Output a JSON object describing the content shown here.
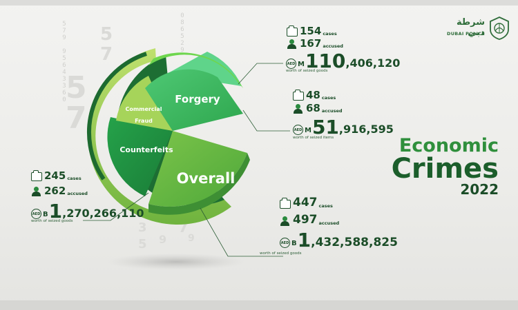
{
  "logo": {
    "arabic": "شرطة دبي",
    "english": "DUBAI POLICE",
    "emblem": "dubai-police-emblem"
  },
  "title": {
    "line1": "Economic",
    "line2": "Crimes",
    "year": "2022"
  },
  "pie": {
    "slices": [
      "Forgery",
      "Commercial Fraud",
      "Counterfeits",
      "Overall"
    ],
    "colors": {
      "dark": "#1b6b2f",
      "mid": "#2ea84a",
      "light": "#8ccc4a",
      "pale": "#b8de72"
    }
  },
  "stats": {
    "commercial_fraud": {
      "cases": "154",
      "cases_unit": "cases",
      "accused": "167",
      "accused_unit": "accused",
      "amount_prefix": "M",
      "amount_big": "110",
      "amount_rest": ",406,120",
      "amount_label": "worth of seized goods"
    },
    "forgery": {
      "cases": "48",
      "cases_unit": "cases",
      "accused": "68",
      "accused_unit": "accused",
      "amount_prefix": "M",
      "amount_big": "51",
      "amount_rest": ",916,595",
      "amount_label": "worth of seized items"
    },
    "counterfeits": {
      "cases": "245",
      "cases_unit": "cases",
      "accused": "262",
      "accused_unit": "accused",
      "amount_prefix": "B",
      "amount_big": "1",
      "amount_rest": ",270,266,110",
      "amount_label": "worth of seized goods"
    },
    "overall": {
      "cases": "447",
      "cases_unit": "cases",
      "accused": "497",
      "accused_unit": "accused",
      "amount_prefix": "B",
      "amount_big": "1",
      "amount_rest": ",432,588,825",
      "amount_label": "worth of seized goods"
    },
    "currency_badge": "AED"
  },
  "background_digits": {
    "col1": "5\n7\n9\n\n9\n5\n6\n4\n3\n3\n6\n0",
    "col2": "0\n8\n6\n5\n2\n9",
    "big": [
      "5",
      "7",
      "5",
      "7",
      "3",
      "5",
      "9",
      "7",
      "9"
    ]
  }
}
